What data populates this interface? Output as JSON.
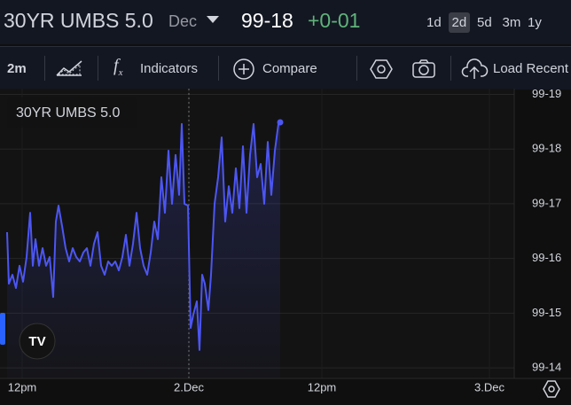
{
  "header": {
    "symbol": "30YR UMBS 5.0",
    "contract": "Dec",
    "price": "99-18",
    "change": "+0-01",
    "ranges": [
      "1d",
      "2d",
      "5d",
      "3m",
      "1y"
    ],
    "active_range": "2d"
  },
  "toolbar": {
    "interval": "2m",
    "indicators": "Indicators",
    "compare": "Compare",
    "load_recent": "Load Recent"
  },
  "chart_data": {
    "type": "line",
    "title": "30YR UMBS 5.0",
    "x": [
      0,
      2,
      6,
      10,
      14,
      18,
      22,
      26,
      29,
      32,
      36,
      40,
      44,
      48,
      52,
      55,
      58,
      62,
      66,
      70,
      74,
      78,
      82,
      86,
      90,
      94,
      98,
      102,
      106,
      110,
      114,
      118,
      122,
      126,
      130,
      134,
      138,
      142,
      146,
      150,
      154,
      158,
      162,
      166,
      170,
      174,
      178,
      182,
      186,
      190,
      194,
      197,
      200,
      204,
      207,
      210,
      214,
      217,
      220,
      223,
      227,
      230,
      234,
      238,
      242,
      246,
      250,
      254,
      258,
      262,
      266,
      270,
      274,
      278,
      282,
      286,
      290,
      294,
      298,
      302,
      306,
      308
    ],
    "series": [
      {
        "name": "30YR UMBS 5.0",
        "color": "#4c56f2",
        "values": [
          99.515,
          99.4856,
          99.4907,
          99.4831,
          99.4958,
          99.4867,
          99.5008,
          99.5261,
          99.4958,
          99.511,
          99.4958,
          99.5059,
          99.4958,
          99.5008,
          99.478,
          99.5211,
          99.5302,
          99.5185,
          99.5059,
          99.4983,
          99.5059,
          99.5008,
          99.4983,
          99.5034,
          99.5059,
          99.4958,
          99.5084,
          99.515,
          99.4958,
          99.4907,
          99.4983,
          99.4958,
          99.4983,
          99.4932,
          99.5008,
          99.5135,
          99.4958,
          99.5084,
          99.5261,
          99.5059,
          99.4958,
          99.4907,
          99.5034,
          99.5211,
          99.511,
          99.5464,
          99.5261,
          99.5616,
          99.5312,
          99.5591,
          99.5363,
          99.5768,
          99.5312,
          99.5302,
          99.4603,
          99.4679,
          99.4755,
          99.4477,
          99.4907,
          99.4856,
          99.4705,
          99.4907,
          99.5312,
          99.5464,
          99.5692,
          99.5211,
          99.5413,
          99.5261,
          99.5515,
          99.5287,
          99.5641,
          99.5261,
          99.5591,
          99.5768,
          99.5464,
          99.554,
          99.5312,
          99.5666,
          99.5363,
          99.5616,
          99.5768,
          99.5778
        ]
      }
    ],
    "xlim": [
      0,
      572
    ],
    "xticks": [
      {
        "value": 17,
        "label": "12pm"
      },
      {
        "value": 205,
        "label": "2.Dec"
      },
      {
        "value": 355,
        "label": "12pm"
      },
      {
        "value": 544,
        "label": "3.Dec"
      }
    ],
    "ylim": [
      99.435,
      99.595
    ],
    "yticks": [
      {
        "value": 99.4375,
        "label": "99-14"
      },
      {
        "value": 99.46875,
        "label": "99-15"
      },
      {
        "value": 99.5,
        "label": "99-16"
      },
      {
        "value": 99.53125,
        "label": "99-17"
      },
      {
        "value": 99.5625,
        "label": "99-18"
      },
      {
        "value": 99.59375,
        "label": "99-19"
      }
    ],
    "grid": true
  }
}
